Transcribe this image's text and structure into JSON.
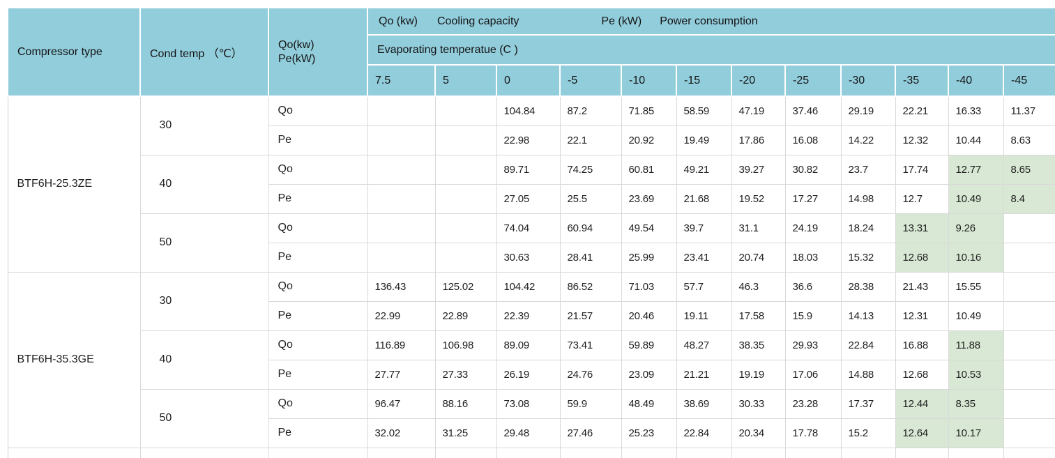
{
  "header": {
    "col_compressor": "Compressor type",
    "col_cond_temp": "Cond temp （℃）",
    "qope_line1": "Qo(kw)",
    "qope_line2": "Pe(kW)",
    "qo_label": "Qo (kw)",
    "qo_desc": "Cooling capacity",
    "pe_label": "Pe (kW)",
    "pe_desc": "Power consumption",
    "evap_label": "Evaporating temperatue (C )",
    "temps": [
      "7.5",
      "5",
      "0",
      "-5",
      "-10",
      "-15",
      "-20",
      "-25",
      "-30",
      "-35",
      "-40",
      "-45"
    ]
  },
  "colors": {
    "header_teal": "#92cddc",
    "highlight_green": "#d8e8d4",
    "grid_light": "#d9d9d9",
    "grid_mid": "#b3b3b3",
    "text": "#1f1f1f"
  },
  "groups": [
    {
      "compressor": "BTF6H-25.3ZE",
      "cond_temps": [
        {
          "temp": "30",
          "rows": [
            {
              "label": "Qo",
              "values": [
                "",
                "",
                "104.84",
                "87.2",
                "71.85",
                "58.59",
                "47.19",
                "37.46",
                "29.19",
                "22.21",
                "16.33",
                "11.37"
              ],
              "green": []
            },
            {
              "label": "Pe",
              "values": [
                "",
                "",
                "22.98",
                "22.1",
                "20.92",
                "19.49",
                "17.86",
                "16.08",
                "14.22",
                "12.32",
                "10.44",
                "8.63"
              ],
              "green": []
            }
          ]
        },
        {
          "temp": "40",
          "rows": [
            {
              "label": "Qo",
              "values": [
                "",
                "",
                "89.71",
                "74.25",
                "60.81",
                "49.21",
                "39.27",
                "30.82",
                "23.7",
                "17.74",
                "12.77",
                "8.65"
              ],
              "green": [
                10,
                11
              ]
            },
            {
              "label": "Pe",
              "values": [
                "",
                "",
                "27.05",
                "25.5",
                "23.69",
                "21.68",
                "19.52",
                "17.27",
                "14.98",
                "12.7",
                "10.49",
                "8.4"
              ],
              "green": [
                10,
                11
              ]
            }
          ]
        },
        {
          "temp": "50",
          "rows": [
            {
              "label": "Qo",
              "values": [
                "",
                "",
                "74.04",
                "60.94",
                "49.54",
                "39.7",
                "31.1",
                "24.19",
                "18.24",
                "13.31",
                "9.26",
                ""
              ],
              "green": [
                9,
                10
              ]
            },
            {
              "label": "Pe",
              "values": [
                "",
                "",
                "30.63",
                "28.41",
                "25.99",
                "23.41",
                "20.74",
                "18.03",
                "15.32",
                "12.68",
                "10.16",
                ""
              ],
              "green": [
                9,
                10
              ]
            }
          ]
        }
      ]
    },
    {
      "compressor": "BTF6H-35.3GE",
      "cond_temps": [
        {
          "temp": "30",
          "rows": [
            {
              "label": "Qo",
              "values": [
                "136.43",
                "125.02",
                "104.42",
                "86.52",
                "71.03",
                "57.7",
                "46.3",
                "36.6",
                "28.38",
                "21.43",
                "15.55",
                ""
              ],
              "green": []
            },
            {
              "label": "Pe",
              "values": [
                "22.99",
                "22.89",
                "22.39",
                "21.57",
                "20.46",
                "19.11",
                "17.58",
                "15.9",
                "14.13",
                "12.31",
                "10.49",
                ""
              ],
              "green": []
            }
          ]
        },
        {
          "temp": "40",
          "rows": [
            {
              "label": "Qo",
              "values": [
                "116.89",
                "106.98",
                "89.09",
                "73.41",
                "59.89",
                "48.27",
                "38.35",
                "29.93",
                "22.84",
                "16.88",
                "11.88",
                ""
              ],
              "green": [
                10
              ]
            },
            {
              "label": "Pe",
              "values": [
                "27.77",
                "27.33",
                "26.19",
                "24.76",
                "23.09",
                "21.21",
                "19.19",
                "17.06",
                "14.88",
                "12.68",
                "10.53",
                ""
              ],
              "green": [
                10
              ]
            }
          ]
        },
        {
          "temp": "50",
          "rows": [
            {
              "label": "Qo",
              "values": [
                "96.47",
                "88.16",
                "73.08",
                "59.9",
                "48.49",
                "38.69",
                "30.33",
                "23.28",
                "17.37",
                "12.44",
                "8.35",
                ""
              ],
              "green": [
                9,
                10
              ]
            },
            {
              "label": "Pe",
              "values": [
                "32.02",
                "31.25",
                "29.48",
                "27.46",
                "25.23",
                "22.84",
                "20.34",
                "17.78",
                "15.2",
                "12.64",
                "10.17",
                ""
              ],
              "green": [
                9,
                10
              ]
            }
          ]
        }
      ]
    }
  ]
}
